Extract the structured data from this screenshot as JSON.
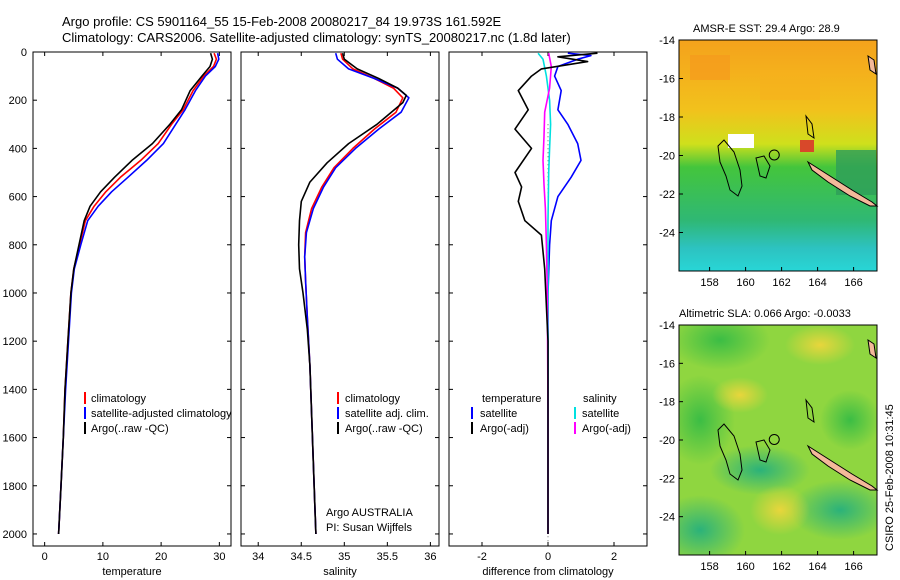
{
  "header": {
    "title_line1": "Argo profile: CS 5901164_55 15-Feb-2008 20080217_84 19.973S 161.592E",
    "title_line2": "Climatology: CARS2006. Satellite-adjusted climatology: synTS_20080217.nc (1.8d later)"
  },
  "side_label": "CSIRO 25-Feb-2008 10:31:45",
  "chart_data": [
    {
      "id": "temperature",
      "type": "line",
      "xlabel": "temperature",
      "xlim": [
        -2,
        32
      ],
      "ylim": [
        2050,
        0
      ],
      "xticks": [
        0,
        10,
        20,
        30
      ],
      "yticks": [
        0,
        200,
        400,
        600,
        800,
        1000,
        1200,
        1400,
        1600,
        1800,
        2000
      ],
      "legend": [
        "climatology",
        "satellite-adjusted climatology",
        "Argo(..raw -QC)"
      ],
      "series": [
        {
          "name": "climatology",
          "color": "#ff0000",
          "points": [
            [
              29.1,
              5
            ],
            [
              29.5,
              30
            ],
            [
              29.0,
              60
            ],
            [
              27.3,
              100
            ],
            [
              25.5,
              160
            ],
            [
              23.8,
              240
            ],
            [
              21.8,
              300
            ],
            [
              19.5,
              380
            ],
            [
              16.5,
              450
            ],
            [
              13.0,
              520
            ],
            [
              10.5,
              580
            ],
            [
              8.5,
              640
            ],
            [
              7.0,
              700
            ],
            [
              6.0,
              800
            ],
            [
              5.0,
              900
            ],
            [
              4.5,
              1000
            ],
            [
              4.0,
              1200
            ],
            [
              3.5,
              1400
            ],
            [
              3.2,
              1600
            ],
            [
              2.8,
              1800
            ],
            [
              2.4,
              2000
            ]
          ]
        },
        {
          "name": "satellite-adjusted climatology",
          "color": "#0000ff",
          "points": [
            [
              29.7,
              5
            ],
            [
              29.9,
              30
            ],
            [
              29.3,
              60
            ],
            [
              27.6,
              100
            ],
            [
              25.9,
              160
            ],
            [
              24.1,
              240
            ],
            [
              22.5,
              300
            ],
            [
              20.4,
              380
            ],
            [
              17.5,
              450
            ],
            [
              14.3,
              520
            ],
            [
              11.5,
              580
            ],
            [
              9.2,
              640
            ],
            [
              7.4,
              700
            ],
            [
              6.2,
              800
            ],
            [
              5.1,
              900
            ],
            [
              4.6,
              1000
            ],
            [
              4.1,
              1200
            ],
            [
              3.6,
              1400
            ],
            [
              3.2,
              1600
            ],
            [
              2.8,
              1800
            ],
            [
              2.4,
              2000
            ]
          ]
        },
        {
          "name": "Argo(..raw -QC)",
          "color": "#000000",
          "points": [
            [
              28.5,
              5
            ],
            [
              28.8,
              30
            ],
            [
              28.4,
              60
            ],
            [
              27.0,
              100
            ],
            [
              25.0,
              160
            ],
            [
              23.5,
              240
            ],
            [
              21.5,
              300
            ],
            [
              18.5,
              380
            ],
            [
              15.0,
              450
            ],
            [
              12.0,
              520
            ],
            [
              9.6,
              580
            ],
            [
              7.8,
              640
            ],
            [
              6.8,
              700
            ],
            [
              5.9,
              800
            ],
            [
              5.0,
              900
            ],
            [
              4.5,
              1000
            ],
            [
              4.0,
              1200
            ],
            [
              3.5,
              1400
            ],
            [
              3.2,
              1600
            ],
            [
              2.8,
              1800
            ],
            [
              2.4,
              2000
            ]
          ]
        }
      ]
    },
    {
      "id": "salinity",
      "type": "line",
      "xlabel": "salinity",
      "xlim": [
        33.8,
        36.1
      ],
      "ylim": [
        2050,
        0
      ],
      "xticks": [
        34,
        34.5,
        35,
        35.5,
        36
      ],
      "yticks": [
        0,
        200,
        400,
        600,
        800,
        1000,
        1200,
        1400,
        1600,
        1800,
        2000
      ],
      "legend": [
        "climatology",
        "satellite adj. clim.",
        "Argo(..raw -QC)"
      ],
      "series": [
        {
          "name": "climatology",
          "color": "#ff0000",
          "points": [
            [
              34.96,
              5
            ],
            [
              34.98,
              30
            ],
            [
              35.1,
              70
            ],
            [
              35.35,
              110
            ],
            [
              35.57,
              150
            ],
            [
              35.68,
              190
            ],
            [
              35.6,
              250
            ],
            [
              35.35,
              320
            ],
            [
              35.1,
              400
            ],
            [
              34.88,
              480
            ],
            [
              34.74,
              560
            ],
            [
              34.62,
              650
            ],
            [
              34.55,
              750
            ],
            [
              34.54,
              850
            ],
            [
              34.55,
              950
            ],
            [
              34.57,
              1100
            ],
            [
              34.6,
              1300
            ],
            [
              34.62,
              1500
            ],
            [
              34.64,
              1700
            ],
            [
              34.66,
              1900
            ],
            [
              34.67,
              2000
            ]
          ]
        },
        {
          "name": "satellite adj. clim.",
          "color": "#0000ff",
          "points": [
            [
              34.9,
              5
            ],
            [
              34.92,
              30
            ],
            [
              35.05,
              70
            ],
            [
              35.35,
              110
            ],
            [
              35.62,
              150
            ],
            [
              35.75,
              190
            ],
            [
              35.66,
              250
            ],
            [
              35.4,
              320
            ],
            [
              35.13,
              400
            ],
            [
              34.9,
              480
            ],
            [
              34.76,
              560
            ],
            [
              34.64,
              650
            ],
            [
              34.56,
              750
            ],
            [
              34.54,
              850
            ],
            [
              34.55,
              950
            ],
            [
              34.57,
              1100
            ],
            [
              34.6,
              1300
            ],
            [
              34.62,
              1500
            ],
            [
              34.64,
              1700
            ],
            [
              34.66,
              1900
            ],
            [
              34.67,
              2000
            ]
          ]
        },
        {
          "name": "Argo(..raw -QC)",
          "color": "#000000",
          "points": [
            [
              34.98,
              5
            ],
            [
              35.0,
              30
            ],
            [
              35.15,
              70
            ],
            [
              35.4,
              110
            ],
            [
              35.62,
              150
            ],
            [
              35.72,
              180
            ],
            [
              35.68,
              210
            ],
            [
              35.38,
              300
            ],
            [
              35.05,
              380
            ],
            [
              34.8,
              460
            ],
            [
              34.6,
              540
            ],
            [
              34.5,
              620
            ],
            [
              34.48,
              700
            ],
            [
              34.47,
              800
            ],
            [
              34.48,
              900
            ],
            [
              34.52,
              1000
            ],
            [
              34.57,
              1150
            ],
            [
              34.6,
              1300
            ],
            [
              34.62,
              1500
            ],
            [
              34.64,
              1700
            ],
            [
              34.66,
              1900
            ],
            [
              34.67,
              2000
            ]
          ]
        }
      ]
    },
    {
      "id": "difference",
      "type": "line",
      "xlabel": "difference from climatology",
      "xlim": [
        -3.0,
        3.0
      ],
      "ylim": [
        2050,
        0
      ],
      "xticks": [
        -2,
        0,
        2
      ],
      "yticks": [
        0,
        200,
        400,
        600,
        800,
        1000,
        1200,
        1400,
        1600,
        1800,
        2000
      ],
      "legend_temperature_heading": "temperature",
      "legend_salinity_heading": "salinity",
      "legend": [
        "satellite",
        "Argo(-adj)",
        "satellite",
        "Argo(-adj)"
      ],
      "series": [
        {
          "name": "temperature satellite",
          "color": "#0000ff",
          "points": [
            [
              0.6,
              5
            ],
            [
              1.3,
              15
            ],
            [
              0.9,
              30
            ],
            [
              0.3,
              60
            ],
            [
              0.2,
              100
            ],
            [
              0.4,
              160
            ],
            [
              0.3,
              240
            ],
            [
              0.6,
              300
            ],
            [
              0.9,
              380
            ],
            [
              1.0,
              450
            ],
            [
              0.7,
              520
            ],
            [
              0.3,
              600
            ],
            [
              0.1,
              700
            ],
            [
              0.05,
              800
            ],
            [
              0.0,
              1000
            ],
            [
              0.0,
              1500
            ],
            [
              0.0,
              2000
            ]
          ]
        },
        {
          "name": "temperature Argo(-adj)",
          "color": "#000000",
          "points": [
            [
              1.5,
              5
            ],
            [
              0.3,
              20
            ],
            [
              1.2,
              40
            ],
            [
              -0.2,
              70
            ],
            [
              -0.5,
              100
            ],
            [
              -0.9,
              160
            ],
            [
              -0.6,
              240
            ],
            [
              -1.0,
              320
            ],
            [
              -0.5,
              400
            ],
            [
              -1.0,
              500
            ],
            [
              -0.8,
              560
            ],
            [
              -0.9,
              620
            ],
            [
              -0.7,
              700
            ],
            [
              -0.2,
              760
            ],
            [
              -0.1,
              900
            ],
            [
              0.0,
              1200
            ],
            [
              0.0,
              2000
            ]
          ]
        },
        {
          "name": "salinity satellite",
          "color": "#00e0e0",
          "points": [
            [
              -0.3,
              5
            ],
            [
              -0.15,
              30
            ],
            [
              -0.05,
              100
            ],
            [
              0.05,
              200
            ],
            [
              0.08,
              300
            ],
            [
              0.05,
              400
            ],
            [
              0.02,
              500
            ],
            [
              0.0,
              700
            ],
            [
              0.0,
              1000
            ],
            [
              0.0,
              2000
            ]
          ]
        },
        {
          "name": "salinity Argo(-adj)",
          "color": "#ff00ff",
          "points": [
            [
              0.02,
              5
            ],
            [
              0.1,
              60
            ],
            [
              0.05,
              150
            ],
            [
              -0.1,
              250
            ],
            [
              -0.12,
              350
            ],
            [
              -0.15,
              450
            ],
            [
              -0.12,
              550
            ],
            [
              -0.08,
              650
            ],
            [
              -0.05,
              800
            ],
            [
              -0.02,
              1000
            ],
            [
              0.0,
              1500
            ],
            [
              0.0,
              2000
            ]
          ]
        }
      ]
    },
    {
      "id": "sst_map",
      "type": "heatmap",
      "title": "AMSR-E SST: 29.4 Argo: 28.9",
      "xlim": [
        156.3,
        167.3
      ],
      "ylim": [
        -26,
        -14
      ],
      "xticks": [
        158,
        160,
        162,
        164,
        166
      ],
      "yticks": [
        -14,
        -16,
        -18,
        -20,
        -22,
        -24
      ],
      "argo_position": [
        161.592,
        -19.973
      ]
    },
    {
      "id": "sla_map",
      "type": "heatmap",
      "title": "Altimetric SLA: 0.066 Argo: -0.0033",
      "xlim": [
        156.3,
        167.3
      ],
      "ylim": [
        -26,
        -14
      ],
      "xticks": [
        158,
        160,
        162,
        164,
        166
      ],
      "yticks": [
        -14,
        -16,
        -18,
        -20,
        -22,
        -24
      ],
      "argo_position": [
        161.592,
        -19.973
      ]
    }
  ],
  "profile_footer": {
    "line1": "Argo AUSTRALIA",
    "line2": "PI: Susan Wijffels"
  }
}
